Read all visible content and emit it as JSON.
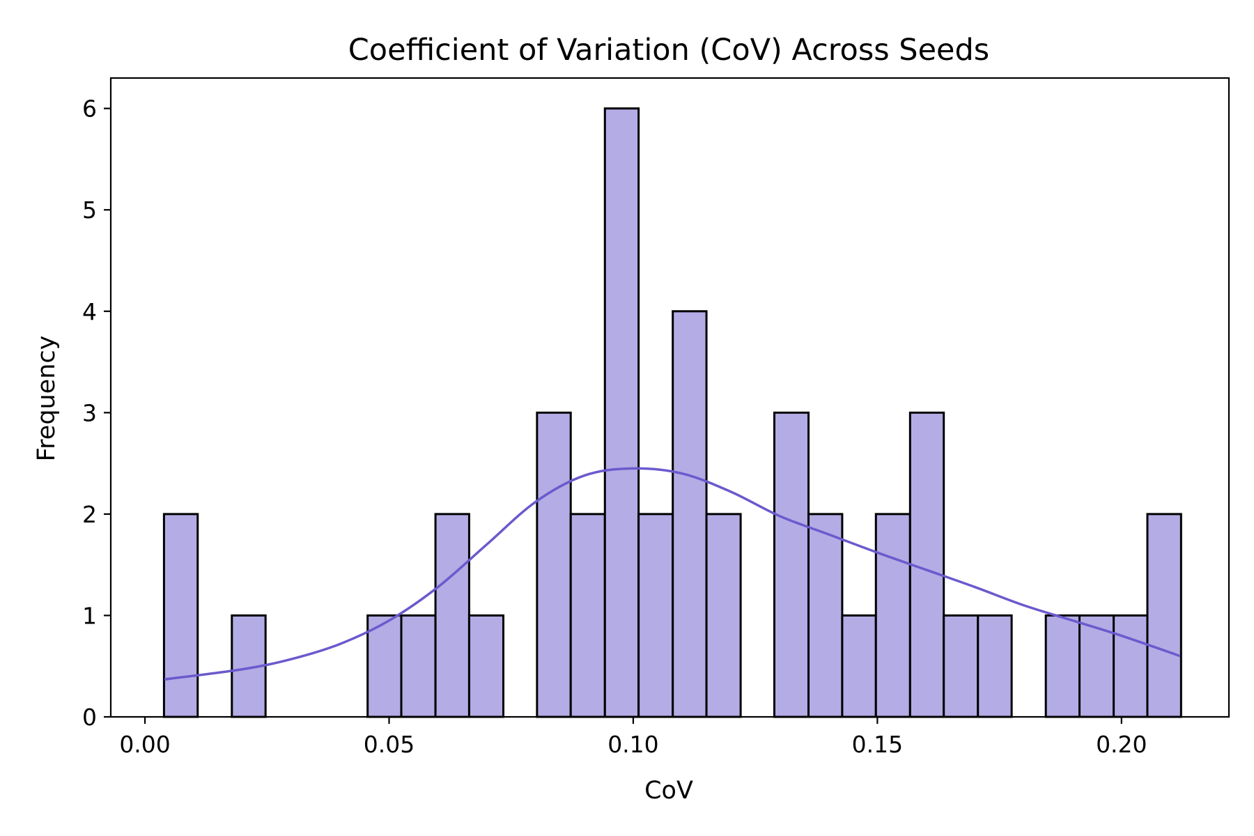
{
  "chart_data": {
    "type": "bar",
    "title": "Coefficient of Variation (CoV) Across Seeds",
    "xlabel": "CoV",
    "ylabel": "Frequency",
    "xlim": [
      -0.007,
      0.222
    ],
    "ylim": [
      0,
      6.3
    ],
    "xticks": [
      0.0,
      0.05,
      0.1,
      0.15,
      0.2
    ],
    "xtick_labels": [
      "0.00",
      "0.05",
      "0.10",
      "0.15",
      "0.20"
    ],
    "yticks": [
      0,
      1,
      2,
      3,
      4,
      5,
      6
    ],
    "ytick_labels": [
      "0",
      "1",
      "2",
      "3",
      "4",
      "5",
      "6"
    ],
    "bin_edges": [
      0.0039,
      0.0108,
      0.0178,
      0.0247,
      0.0317,
      0.0386,
      0.0456,
      0.0525,
      0.0595,
      0.0664,
      0.0734,
      0.0803,
      0.0872,
      0.0942,
      0.1011,
      0.1081,
      0.115,
      0.122,
      0.1289,
      0.1359,
      0.1428,
      0.1497,
      0.1567,
      0.1636,
      0.1706,
      0.1775,
      0.1845,
      0.1914,
      0.1984,
      0.2053,
      0.2122
    ],
    "counts": [
      2,
      0,
      1,
      0,
      0,
      0,
      1,
      1,
      2,
      1,
      0,
      3,
      2,
      6,
      2,
      4,
      2,
      0,
      3,
      2,
      1,
      2,
      3,
      1,
      1,
      0,
      1,
      1,
      1,
      2
    ],
    "kde": {
      "x": [
        0.004,
        0.02,
        0.03,
        0.04,
        0.05,
        0.06,
        0.07,
        0.08,
        0.09,
        0.1,
        0.11,
        0.12,
        0.13,
        0.14,
        0.15,
        0.16,
        0.17,
        0.18,
        0.19,
        0.2,
        0.212
      ],
      "y": [
        0.37,
        0.47,
        0.57,
        0.72,
        0.95,
        1.28,
        1.7,
        2.12,
        2.38,
        2.45,
        2.4,
        2.22,
        1.98,
        1.8,
        1.62,
        1.45,
        1.28,
        1.1,
        0.95,
        0.8,
        0.6
      ]
    },
    "bar_color": "#b3ace5",
    "kde_color": "#6a5acd",
    "grid": false
  }
}
